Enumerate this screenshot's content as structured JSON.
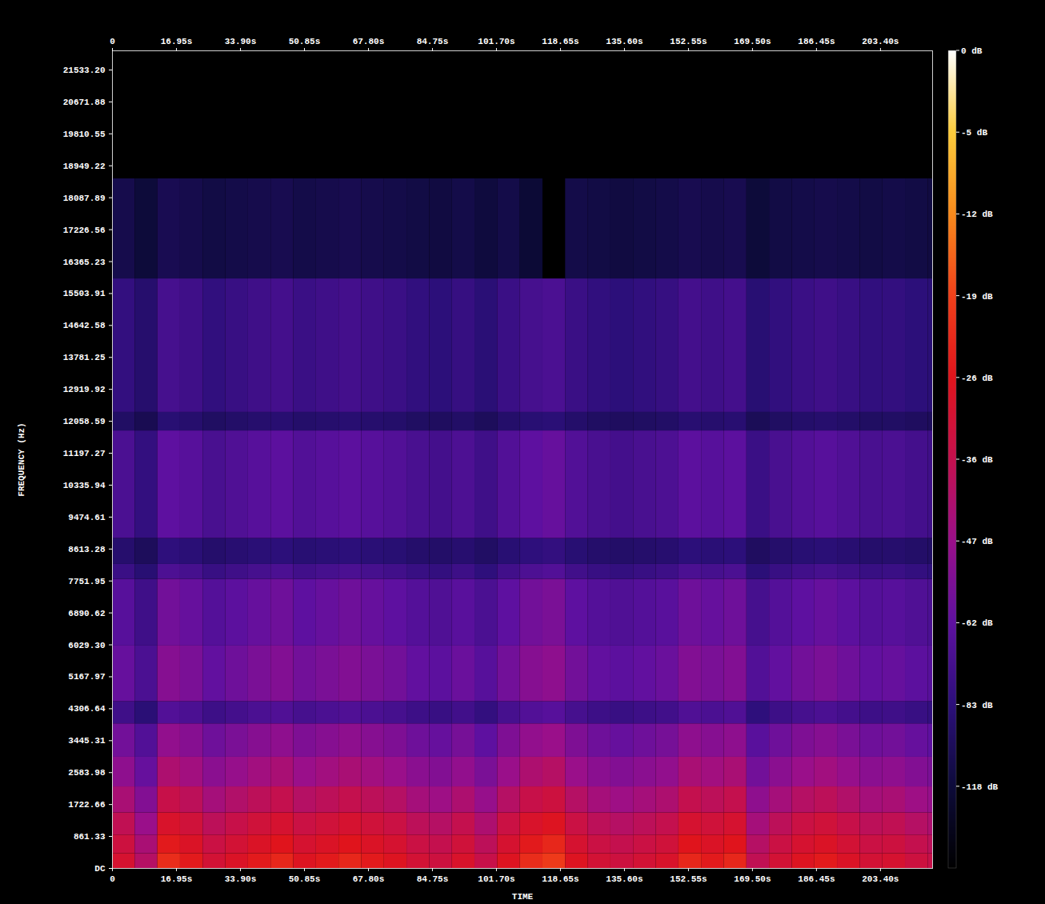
{
  "chart_data": {
    "type": "heatmap",
    "xlabel": "TIME",
    "ylabel": "FREQUENCY (Hz)",
    "xlim": [
      0,
      217.2
    ],
    "ylim": [
      0,
      22050
    ],
    "xticks": [
      0,
      {
        "value": 16.95,
        "label": "16.95s"
      },
      {
        "value": 33.9,
        "label": "33.90s"
      },
      {
        "value": 50.85,
        "label": "50.85s"
      },
      {
        "value": 67.8,
        "label": "67.80s"
      },
      {
        "value": 84.75,
        "label": "84.75s"
      },
      {
        "value": 101.7,
        "label": "101.70s"
      },
      {
        "value": 118.65,
        "label": "118.65s"
      },
      {
        "value": 135.6,
        "label": "135.60s"
      },
      {
        "value": 152.55,
        "label": "152.55s"
      },
      {
        "value": 169.5,
        "label": "169.50s"
      },
      {
        "value": 186.45,
        "label": "186.45s"
      },
      {
        "value": 203.4,
        "label": "203.40s"
      }
    ],
    "yticks": [
      {
        "value": 0,
        "label": "DC"
      },
      861.33,
      1722.66,
      2583.98,
      3445.31,
      4306.64,
      5167.97,
      {
        "value": 6029.3,
        "label": "6029.30"
      },
      6890.62,
      7751.95,
      8613.28,
      9474.61,
      10335.94,
      11197.27,
      12058.59,
      12919.92,
      13781.25,
      14642.58,
      15503.91,
      16365.23,
      17226.56,
      18087.89,
      18949.22,
      19810.55,
      20671.88,
      {
        "value": 21533.2,
        "label": "21533.20"
      }
    ],
    "time_bins": [
      0,
      6,
      12,
      18,
      24,
      30,
      36,
      42,
      48,
      54,
      60,
      66,
      72,
      78,
      84,
      90,
      96,
      102,
      108,
      114,
      120,
      126,
      132,
      138,
      144,
      150,
      156,
      162,
      168,
      174,
      180,
      186,
      192,
      198,
      204,
      210,
      216,
      217.2
    ],
    "frequency_bins": [
      0,
      400,
      900,
      1500,
      2200,
      3000,
      3900,
      4500,
      6000,
      7800,
      8200,
      8900,
      11800,
      12300,
      15900,
      18600,
      22050
    ],
    "cells": [
      [
        -30,
        -40,
        -22,
        -25,
        -31,
        -28,
        -25,
        -23,
        -27,
        -25,
        -23,
        -25,
        -27,
        -31,
        -33,
        -29,
        -35,
        -27,
        -22,
        -20,
        -27,
        -31,
        -33,
        -31,
        -29,
        -23,
        -25,
        -23,
        -37,
        -31,
        -27,
        -25,
        -28,
        -31,
        -30,
        -33,
        -35
      ],
      [
        -33,
        -43,
        -25,
        -28,
        -34,
        -31,
        -28,
        -26,
        -30,
        -28,
        -26,
        -28,
        -30,
        -34,
        -36,
        -32,
        -38,
        -30,
        -25,
        -23,
        -30,
        -34,
        -36,
        -34,
        -32,
        -26,
        -28,
        -26,
        -40,
        -34,
        -30,
        -28,
        -31,
        -34,
        -33,
        -36,
        -38
      ],
      [
        -37,
        -47,
        -29,
        -32,
        -38,
        -35,
        -32,
        -30,
        -34,
        -32,
        -30,
        -32,
        -34,
        -38,
        -40,
        -36,
        -42,
        -34,
        -29,
        -27,
        -34,
        -38,
        -40,
        -38,
        -36,
        -30,
        -32,
        -30,
        -44,
        -38,
        -34,
        -32,
        -35,
        -38,
        -37,
        -40,
        -42
      ],
      [
        -43,
        -53,
        -35,
        -38,
        -44,
        -41,
        -38,
        -36,
        -40,
        -38,
        -36,
        -38,
        -40,
        -44,
        -46,
        -42,
        -48,
        -40,
        -35,
        -33,
        -40,
        -44,
        -46,
        -44,
        -42,
        -36,
        -38,
        -36,
        -50,
        -44,
        -40,
        -38,
        -41,
        -44,
        -43,
        -46,
        -48
      ],
      [
        -50,
        -60,
        -42,
        -45,
        -51,
        -48,
        -45,
        -43,
        -47,
        -45,
        -43,
        -45,
        -47,
        -51,
        -53,
        -49,
        -55,
        -47,
        -42,
        -40,
        -47,
        -51,
        -53,
        -51,
        -49,
        -43,
        -45,
        -43,
        -57,
        -51,
        -47,
        -45,
        -48,
        -51,
        -50,
        -53,
        -55
      ],
      [
        -57,
        -67,
        -49,
        -52,
        -58,
        -55,
        -52,
        -50,
        -54,
        -52,
        -50,
        -52,
        -54,
        -58,
        -60,
        -56,
        -62,
        -54,
        -49,
        -47,
        -54,
        -58,
        -60,
        -58,
        -56,
        -50,
        -52,
        -50,
        -64,
        -58,
        -54,
        -52,
        -55,
        -58,
        -57,
        -60,
        -62
      ],
      [
        -75,
        -85,
        -67,
        -70,
        -76,
        -73,
        -70,
        -68,
        -72,
        -70,
        -68,
        -70,
        -72,
        -76,
        -78,
        -74,
        -80,
        -72,
        -67,
        -65,
        -72,
        -76,
        -78,
        -76,
        -74,
        -68,
        -70,
        -68,
        -82,
        -76,
        -72,
        -70,
        -73,
        -76,
        -75,
        -78,
        -80
      ],
      [
        -60,
        -70,
        -52,
        -55,
        -61,
        -58,
        -55,
        -53,
        -57,
        -55,
        -53,
        -55,
        -57,
        -61,
        -63,
        -59,
        -65,
        -57,
        -52,
        -50,
        -57,
        -61,
        -63,
        -61,
        -59,
        -53,
        -55,
        -53,
        -67,
        -61,
        -57,
        -55,
        -58,
        -61,
        -60,
        -63,
        -65
      ],
      [
        -65,
        -75,
        -57,
        -60,
        -66,
        -63,
        -60,
        -58,
        -62,
        -60,
        -58,
        -60,
        -62,
        -66,
        -68,
        -64,
        -70,
        -62,
        -57,
        -55,
        -62,
        -66,
        -68,
        -66,
        -64,
        -58,
        -60,
        -58,
        -72,
        -66,
        -62,
        -60,
        -63,
        -66,
        -65,
        -68,
        -70
      ],
      [
        -77,
        -87,
        -69,
        -72,
        -78,
        -75,
        -72,
        -70,
        -74,
        -72,
        -70,
        -72,
        -74,
        -78,
        -80,
        -76,
        -82,
        -74,
        -69,
        -67,
        -74,
        -78,
        -80,
        -78,
        -76,
        -70,
        -72,
        -70,
        -84,
        -78,
        -74,
        -72,
        -75,
        -78,
        -77,
        -80,
        -82
      ],
      [
        -90,
        -100,
        -82,
        -85,
        -91,
        -88,
        -85,
        -83,
        -87,
        -85,
        -83,
        -85,
        -87,
        -91,
        -93,
        -89,
        -95,
        -87,
        -82,
        -80,
        -87,
        -91,
        -93,
        -91,
        -89,
        -83,
        -85,
        -83,
        -97,
        -91,
        -87,
        -85,
        -88,
        -91,
        -90,
        -93,
        -95
      ],
      [
        -70,
        -80,
        -62,
        -65,
        -71,
        -68,
        -65,
        -63,
        -67,
        -65,
        -63,
        -65,
        -67,
        -71,
        -73,
        -69,
        -75,
        -67,
        -62,
        -60,
        -67,
        -71,
        -73,
        -71,
        -69,
        -63,
        -65,
        -63,
        -77,
        -71,
        -67,
        -65,
        -68,
        -71,
        -70,
        -73,
        -75
      ],
      [
        -95,
        -105,
        -87,
        -90,
        -96,
        -93,
        -90,
        -88,
        -92,
        -90,
        -88,
        -90,
        -92,
        -96,
        -98,
        -94,
        -100,
        -92,
        -87,
        -85,
        -92,
        -96,
        -98,
        -96,
        -94,
        -88,
        -90,
        -88,
        -102,
        -96,
        -92,
        -90,
        -93,
        -96,
        -95,
        -98,
        -100
      ],
      [
        -80,
        -90,
        -72,
        -75,
        -81,
        -78,
        -75,
        -73,
        -77,
        -75,
        -73,
        -75,
        -77,
        -81,
        -83,
        -79,
        -85,
        -77,
        -72,
        -70,
        -77,
        -81,
        -83,
        -81,
        -79,
        -73,
        -75,
        -73,
        -87,
        -81,
        -77,
        -75,
        -78,
        -81,
        -80,
        -83,
        -85
      ],
      [
        -108,
        -118,
        -105,
        -108,
        -112,
        -110,
        -108,
        -106,
        -110,
        -108,
        -106,
        -108,
        -110,
        -112,
        -114,
        -110,
        -116,
        -110,
        -120,
        -150,
        -110,
        -112,
        -114,
        -112,
        -110,
        -106,
        -108,
        -106,
        -118,
        -112,
        -110,
        -108,
        -110,
        -112,
        -110,
        -112,
        -114
      ],
      [
        -150,
        -150,
        -150,
        -150,
        -150,
        -150,
        -150,
        -150,
        -150,
        -150,
        -150,
        -150,
        -150,
        -150,
        -150,
        -150,
        -150,
        -150,
        -150,
        -150,
        -150,
        -150,
        -150,
        -150,
        -150,
        -150,
        -150,
        -150,
        -150,
        -150,
        -150,
        -150,
        -150,
        -150,
        -150,
        -150,
        -150
      ]
    ],
    "colorbar": {
      "range": [
        -150,
        0
      ],
      "ticks": [
        {
          "value": -118,
          "label": "-118 dB"
        },
        {
          "value": -83,
          "label": "-83 dB"
        },
        {
          "value": -62,
          "label": "-62 dB"
        },
        {
          "value": -47,
          "label": "-47 dB"
        },
        {
          "value": -36,
          "label": "-36 dB"
        },
        {
          "value": -26,
          "label": "-26 dB"
        },
        {
          "value": -19,
          "label": "-19 dB"
        },
        {
          "value": -12,
          "label": "-12 dB"
        },
        {
          "value": -5,
          "label": "-5 dB"
        },
        {
          "value": 0,
          "label": "0 dB"
        }
      ]
    }
  }
}
